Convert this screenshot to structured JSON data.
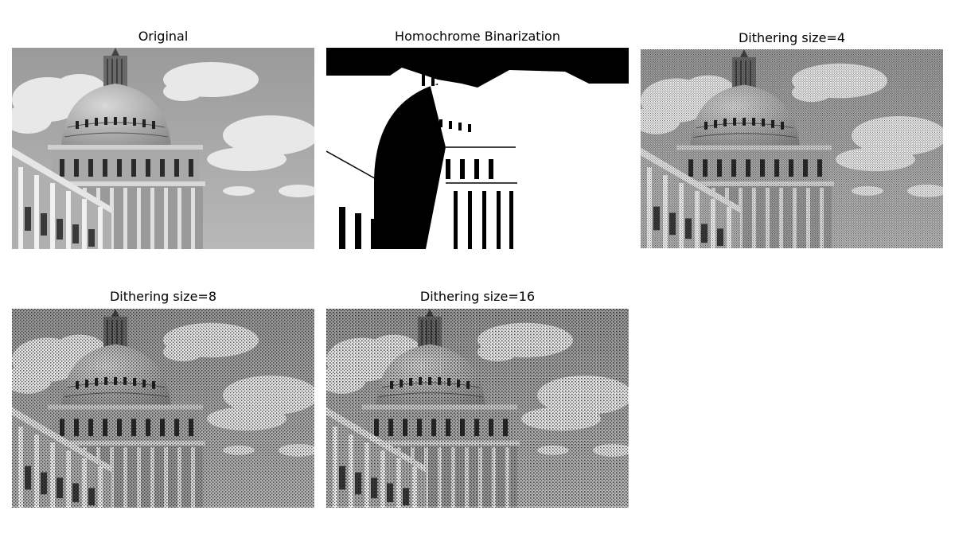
{
  "panels": [
    {
      "title": "Original"
    },
    {
      "title": "Homochrome Binarization"
    },
    {
      "title": "Dithering size=4"
    },
    {
      "title": "Dithering size=8"
    },
    {
      "title": "Dithering size=16"
    }
  ]
}
